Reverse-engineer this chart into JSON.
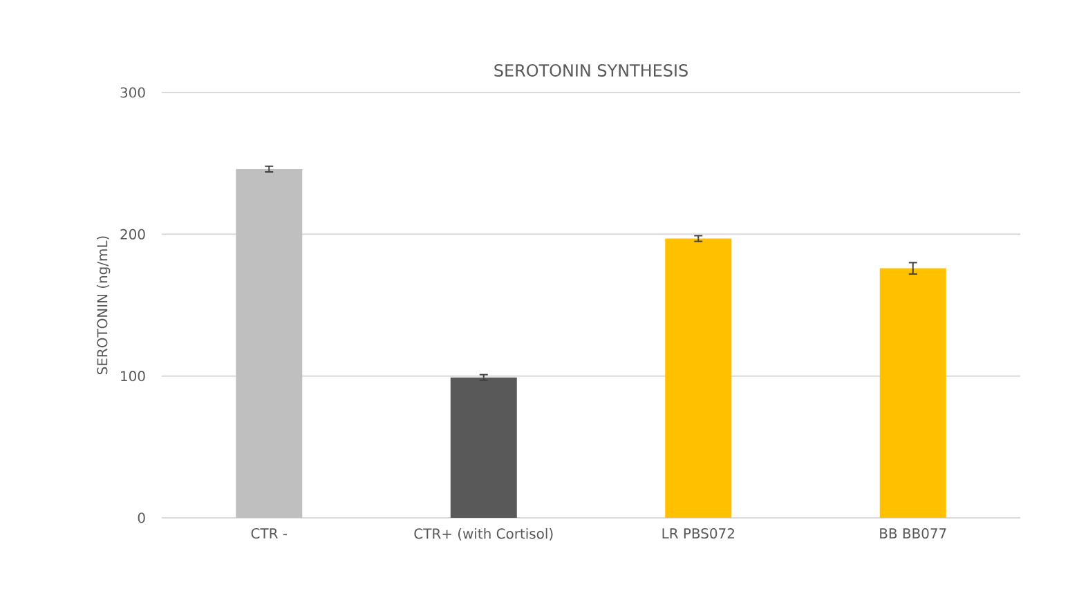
{
  "chart_data": {
    "type": "bar",
    "title": "SEROTONIN SYNTHESIS",
    "ylabel": "SEROTONIN (ng/mL)",
    "categories": [
      "CTR -",
      "CTR+ (with Cortisol)",
      "LR PBS072",
      "BB BB077"
    ],
    "values": [
      246,
      99,
      197,
      176
    ],
    "errors": [
      2,
      2,
      2,
      4
    ],
    "colors": [
      "#bfbfbf",
      "#595959",
      "#ffc000",
      "#ffc000"
    ],
    "ylim": [
      0,
      300
    ],
    "yticks": [
      0,
      100,
      200,
      300
    ],
    "grid": "y"
  }
}
